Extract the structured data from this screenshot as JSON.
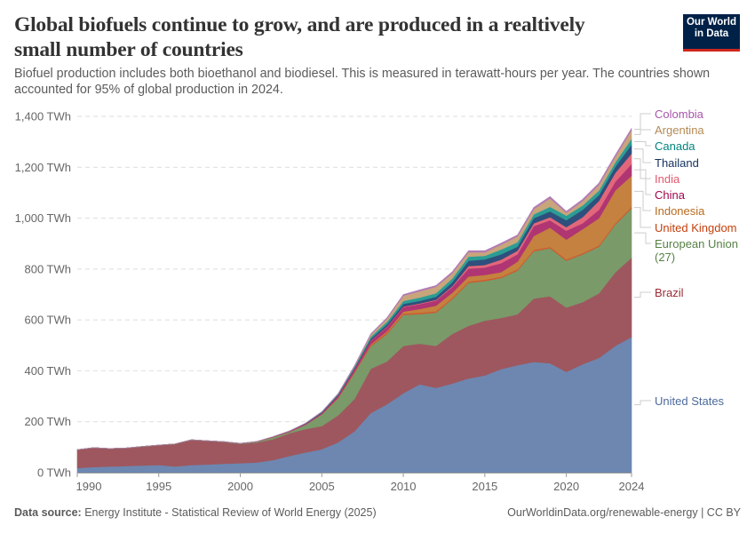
{
  "header": {
    "title": "Global biofuels continue to grow, and are produced in a realtively small number of countries",
    "subtitle": "Biofuel production includes both bioethanol and biodiesel. This is measured in terawatt-hours per year. The countries shown accounted for 95% of global production in 2024.",
    "logo_line1": "Our World",
    "logo_line2": "in Data"
  },
  "footer": {
    "source_label": "Data source:",
    "source_text": "Energy Institute - Statistical Review of World Energy (2025)",
    "url": "OurWorldinData.org/renewable-energy | CC BY"
  },
  "chart_data": {
    "type": "area",
    "stacked": true,
    "title": "Global biofuels continue to grow, and are produced in a realtively small number of countries",
    "ylabel": "",
    "xlabel": "",
    "unit": "TWh",
    "ylim": [
      0,
      1400
    ],
    "xlim": [
      1990,
      2024
    ],
    "grid": "horizontal dashed",
    "legend": "right (inline labels)",
    "y_ticks": [
      "0 TWh",
      "200 TWh",
      "400 TWh",
      "600 TWh",
      "800 TWh",
      "1,000 TWh",
      "1,200 TWh",
      "1,400 TWh"
    ],
    "x_ticks": [
      "1990",
      "1995",
      "2000",
      "2005",
      "2010",
      "2015",
      "2020",
      "2024"
    ],
    "x": [
      1990,
      1991,
      1992,
      1993,
      1994,
      1995,
      1996,
      1997,
      1998,
      1999,
      2000,
      2001,
      2002,
      2003,
      2004,
      2005,
      2006,
      2007,
      2008,
      2009,
      2010,
      2011,
      2012,
      2013,
      2014,
      2015,
      2016,
      2017,
      2018,
      2019,
      2020,
      2021,
      2022,
      2023,
      2024
    ],
    "series": [
      {
        "name": "United States",
        "color": "#6d87b1",
        "label_color": "#4c6a9c",
        "values": [
          18,
          22,
          24,
          26,
          28,
          30,
          24,
          30,
          32,
          35,
          37,
          40,
          49,
          65,
          79,
          92,
          119,
          162,
          234,
          269,
          312,
          347,
          333,
          350,
          370,
          382,
          407,
          422,
          435,
          430,
          396,
          426,
          451,
          498,
          533
        ]
      },
      {
        "name": "Brazil",
        "color": "#9e575e",
        "label_color": "#9a2c35",
        "values": [
          72,
          76,
          70,
          70,
          74,
          77,
          88,
          98,
          92,
          85,
          76,
          78,
          82,
          89,
          92,
          91,
          106,
          127,
          174,
          168,
          186,
          160,
          165,
          195,
          207,
          215,
          201,
          200,
          249,
          263,
          253,
          244,
          254,
          289,
          312
        ]
      },
      {
        "name": "European Union (27)",
        "color": "#7a9a69",
        "label_color": "#578145",
        "values": [
          0,
          0,
          0.5,
          0.5,
          1,
          1,
          1,
          1,
          1,
          1.5,
          2,
          3,
          8,
          6,
          17,
          46,
          67,
          102,
          88,
          108,
          122,
          116,
          131,
          137,
          169,
          156,
          157,
          172,
          186,
          189,
          184,
          188,
          183,
          188,
          194
        ]
      },
      {
        "name": "United Kingdom",
        "color": "#d0592f",
        "label_color": "#c4400e",
        "values": [
          0,
          0,
          0,
          0,
          0,
          0,
          0,
          0,
          0,
          0,
          0,
          0,
          0,
          0,
          0,
          1,
          2,
          3,
          5,
          6,
          5,
          5,
          5,
          5,
          5,
          5,
          5,
          5,
          5,
          5,
          5,
          5,
          5,
          5,
          5
        ]
      },
      {
        "name": "Indonesia",
        "color": "#c4813f",
        "label_color": "#b86b1e",
        "values": [
          0,
          0,
          0,
          0,
          0,
          0,
          0,
          0,
          0,
          0,
          0,
          0,
          0,
          0,
          0,
          0,
          1,
          2,
          3,
          5,
          8,
          15,
          22,
          20,
          20,
          19,
          18,
          30,
          55,
          76,
          78,
          94,
          107,
          129,
          123
        ]
      },
      {
        "name": "China",
        "color": "#b03573",
        "label_color": "#a2054d",
        "values": [
          0,
          0,
          0,
          0,
          0,
          0,
          0,
          0,
          0,
          0,
          0,
          1,
          2,
          3,
          4,
          5,
          8,
          10,
          15,
          17,
          18,
          19,
          20,
          22,
          31,
          29,
          35,
          29,
          39,
          29,
          35,
          23,
          33,
          34,
          46
        ]
      },
      {
        "name": "India",
        "color": "#e3677a",
        "label_color": "#e5566b",
        "values": [
          0,
          0,
          0,
          0,
          0,
          0,
          0,
          0,
          0,
          0,
          0,
          0,
          0,
          0,
          0,
          0,
          0,
          1,
          1,
          2,
          2,
          3,
          3,
          4,
          10,
          10,
          14,
          14,
          11,
          12,
          14,
          24,
          35,
          35,
          41
        ]
      },
      {
        "name": "Thailand",
        "color": "#2f4f7c",
        "label_color": "#13315e",
        "values": [
          0,
          0,
          0,
          0,
          0,
          0,
          0,
          0,
          0,
          0,
          0,
          0,
          0,
          0,
          1,
          2,
          3,
          4,
          6,
          8,
          10,
          10,
          12,
          15,
          21,
          22,
          21,
          16,
          20,
          23,
          27,
          29,
          23,
          24,
          35
        ]
      },
      {
        "name": "Canada",
        "color": "#2b9d95",
        "label_color": "#00847e",
        "values": [
          0,
          0,
          0,
          0,
          0,
          0,
          0,
          0,
          0,
          0,
          0,
          0,
          0,
          0,
          1,
          2,
          3,
          5,
          8,
          10,
          12,
          13,
          14,
          15,
          16,
          14,
          19,
          17,
          15,
          18,
          18,
          17,
          18,
          17,
          23
        ]
      },
      {
        "name": "Argentina",
        "color": "#c9a57b",
        "label_color": "#b58a55",
        "values": [
          0,
          0,
          0,
          0,
          0,
          0,
          0,
          0,
          0,
          0,
          0,
          0,
          0,
          0,
          0,
          0,
          1,
          2,
          8,
          12,
          20,
          25,
          25,
          20,
          17,
          14,
          19,
          23,
          20,
          33,
          11,
          17,
          22,
          22,
          34
        ]
      },
      {
        "name": "Colombia",
        "color": "#b27cb5",
        "label_color": "#a657a9",
        "values": [
          0,
          0,
          0,
          0,
          0,
          0,
          0,
          0,
          0,
          0,
          0,
          0,
          0,
          0,
          0,
          0,
          1,
          2,
          3,
          4,
          5,
          5,
          5,
          6,
          6,
          6,
          6,
          6,
          7,
          7,
          6,
          7,
          7,
          7,
          7
        ]
      }
    ]
  }
}
